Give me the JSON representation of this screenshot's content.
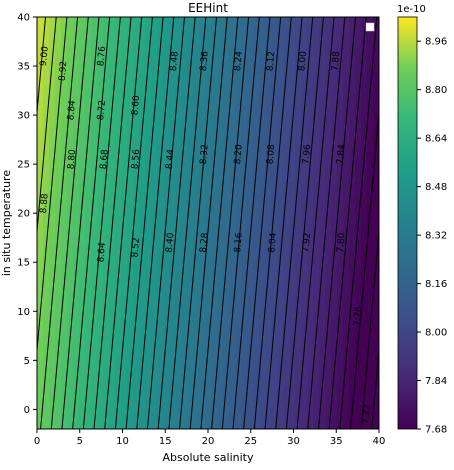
{
  "chart_data": {
    "type": "heatmap",
    "title": "EEHint",
    "xlabel": "Absolute salinity",
    "ylabel": "in situ temperature",
    "xlim": [
      0,
      40
    ],
    "ylim": [
      -2,
      40
    ],
    "xticks": [
      0,
      5,
      10,
      15,
      20,
      25,
      30,
      35,
      40
    ],
    "yticks": [
      0,
      5,
      10,
      15,
      20,
      25,
      30,
      35,
      40
    ],
    "field": {
      "description_of_values": "value(S,T) = base + s_coef*S + t_coef*T (units x1e-10)",
      "base": 8.86,
      "s_coef": -0.032,
      "t_coef": 0.0033
    },
    "contour_step": 0.04,
    "contour_labels": [
      {
        "text": "9.00",
        "S": 0.8,
        "T": 36
      },
      {
        "text": "8.92",
        "S": 3.0,
        "T": 34.5
      },
      {
        "text": "8.76",
        "S": 7.5,
        "T": 36
      },
      {
        "text": "8.48",
        "S": 16.0,
        "T": 35.5
      },
      {
        "text": "8.36",
        "S": 19.5,
        "T": 35.5
      },
      {
        "text": "8.24",
        "S": 23.5,
        "T": 35.5
      },
      {
        "text": "8.12",
        "S": 27.3,
        "T": 35.5
      },
      {
        "text": "8.00",
        "S": 31.0,
        "T": 35.5
      },
      {
        "text": "7.88",
        "S": 34.9,
        "T": 35.5
      },
      {
        "text": "8.84",
        "S": 4.0,
        "T": 30.5
      },
      {
        "text": "8.72",
        "S": 7.5,
        "T": 30.5
      },
      {
        "text": "8.60",
        "S": 11.5,
        "T": 31.0
      },
      {
        "text": "8.80",
        "S": 4.0,
        "T": 25.5
      },
      {
        "text": "8.68",
        "S": 7.8,
        "T": 25.5
      },
      {
        "text": "8.56",
        "S": 11.5,
        "T": 25.5
      },
      {
        "text": "8.44",
        "S": 15.5,
        "T": 25.5
      },
      {
        "text": "8.32",
        "S": 19.5,
        "T": 26.0
      },
      {
        "text": "8.20",
        "S": 23.5,
        "T": 26.0
      },
      {
        "text": "8.08",
        "S": 27.3,
        "T": 26.0
      },
      {
        "text": "7.96",
        "S": 31.5,
        "T": 26.0
      },
      {
        "text": "7.84",
        "S": 35.5,
        "T": 26.0
      },
      {
        "text": "8.88",
        "S": 0.8,
        "T": 21.0
      },
      {
        "text": "8.64",
        "S": 7.5,
        "T": 16.0
      },
      {
        "text": "8.52",
        "S": 11.5,
        "T": 16.5
      },
      {
        "text": "8.40",
        "S": 15.5,
        "T": 17.0
      },
      {
        "text": "8.28",
        "S": 19.5,
        "T": 17.0
      },
      {
        "text": "8.16",
        "S": 23.5,
        "T": 17.0
      },
      {
        "text": "8.04",
        "S": 27.5,
        "T": 17.0
      },
      {
        "text": "7.92",
        "S": 31.5,
        "T": 17.0
      },
      {
        "text": "7.80",
        "S": 35.5,
        "T": 17.0
      },
      {
        "text": "7.76",
        "S": 37.5,
        "T": 9.5
      },
      {
        "text": "7.72",
        "S": 38.5,
        "T": -0.5
      }
    ],
    "colorbar": {
      "multiplier": "1e-10",
      "min": 7.68,
      "max": 9.04,
      "ticks": [
        "8.96",
        "8.80",
        "8.64",
        "8.48",
        "8.32",
        "8.16",
        "8.00",
        "7.84",
        "7.68"
      ],
      "colormap": "viridis"
    },
    "legend": {
      "placement": "top-right",
      "entries": []
    }
  }
}
